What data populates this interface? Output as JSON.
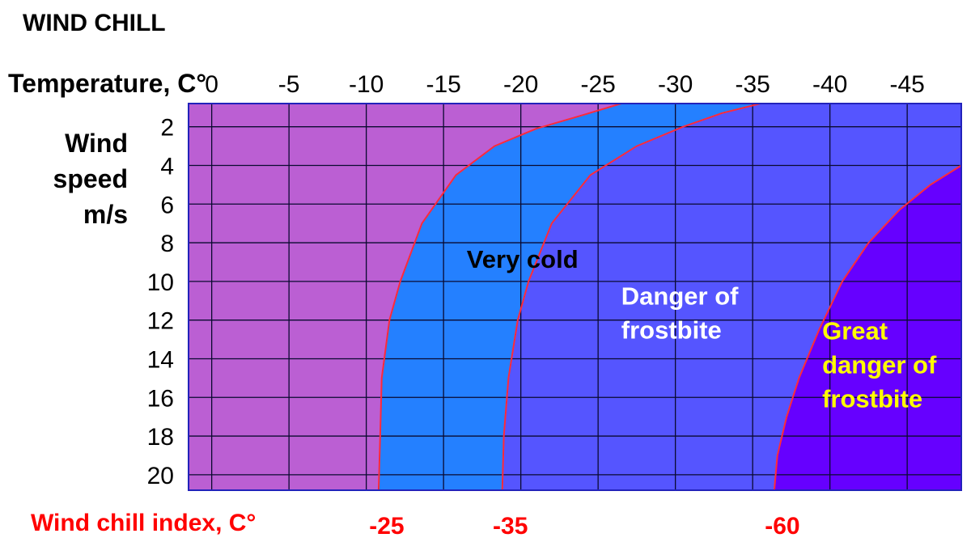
{
  "chart_data": {
    "type": "area",
    "title": "WIND CHILL",
    "xlabel": "Temperature, C°",
    "ylabel_lines": [
      "Wind",
      "speed",
      "m/s"
    ],
    "x_ticks": [
      0,
      -5,
      -10,
      -15,
      -20,
      -25,
      -30,
      -35,
      -40,
      -45
    ],
    "y_ticks": [
      2,
      4,
      6,
      8,
      10,
      12,
      14,
      16,
      18,
      20
    ],
    "xlim": [
      1.5,
      -48.5
    ],
    "ylim": [
      0.8,
      20.8
    ],
    "grid": true,
    "regions": [
      {
        "label_lines": [],
        "color": "#bb5fd3"
      },
      {
        "label_lines": [
          "Very cold"
        ],
        "color": "#2480ff",
        "label_color": "#000000",
        "label_at": [
          -16.5,
          9.3
        ]
      },
      {
        "label_lines": [
          "Danger of",
          "frostbite"
        ],
        "color": "#5555ff",
        "label_color": "#ffffff",
        "label_at": [
          -26.5,
          11.2
        ]
      },
      {
        "label_lines": [
          "Great",
          "danger of",
          "frostbite"
        ],
        "color": "#6600ff",
        "label_color": "#ffff00",
        "label_at": [
          -39.5,
          13.0
        ]
      }
    ],
    "boundaries": [
      {
        "index": "-25",
        "points": [
          [
            -10.8,
            20.8
          ],
          [
            -10.9,
            18.0
          ],
          [
            -11.0,
            15.0
          ],
          [
            -11.5,
            12.0
          ],
          [
            -12.2,
            10.0
          ],
          [
            -13.6,
            7.0
          ],
          [
            -15.8,
            4.5
          ],
          [
            -18.3,
            3.0
          ],
          [
            -21.0,
            2.1
          ],
          [
            -24.0,
            1.4
          ],
          [
            -26.5,
            0.8
          ]
        ]
      },
      {
        "index": "-35",
        "points": [
          [
            -18.8,
            20.8
          ],
          [
            -18.9,
            18.0
          ],
          [
            -19.2,
            15.0
          ],
          [
            -19.8,
            12.0
          ],
          [
            -20.5,
            10.0
          ],
          [
            -22.0,
            7.0
          ],
          [
            -24.5,
            4.5
          ],
          [
            -27.5,
            3.0
          ],
          [
            -30.5,
            2.0
          ],
          [
            -33.0,
            1.3
          ],
          [
            -35.5,
            0.8
          ]
        ]
      },
      {
        "index": "-60",
        "points": [
          [
            -36.4,
            20.8
          ],
          [
            -36.6,
            19.0
          ],
          [
            -37.2,
            17.0
          ],
          [
            -38.0,
            15.0
          ],
          [
            -39.3,
            12.5
          ],
          [
            -40.8,
            10.0
          ],
          [
            -42.5,
            8.0
          ],
          [
            -44.5,
            6.3
          ],
          [
            -46.5,
            5.0
          ],
          [
            -48.5,
            4.0
          ]
        ]
      }
    ],
    "index_label": "Wind chill index, C°"
  }
}
